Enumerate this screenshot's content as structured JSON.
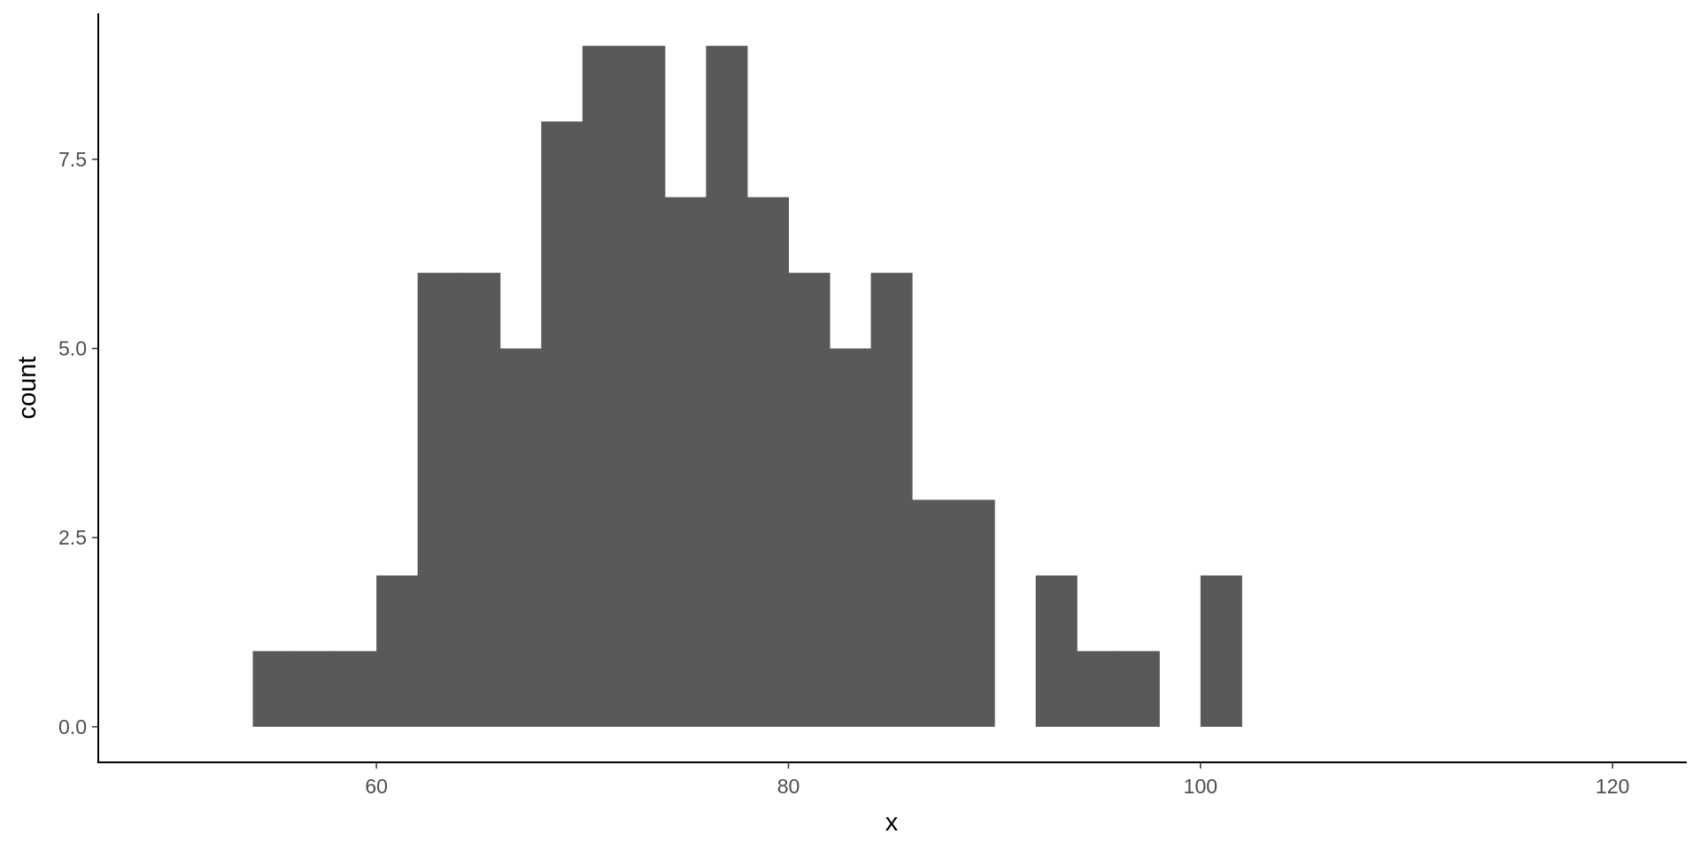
{
  "chart_data": {
    "type": "bar",
    "subtype": "histogram",
    "title": "",
    "xlabel": "x",
    "ylabel": "count",
    "bin_width": 2,
    "bins": [
      {
        "x0": 54,
        "x1": 56,
        "count": 1
      },
      {
        "x0": 56,
        "x1": 58,
        "count": 1
      },
      {
        "x0": 58,
        "x1": 60,
        "count": 1
      },
      {
        "x0": 60,
        "x1": 62,
        "count": 2
      },
      {
        "x0": 62,
        "x1": 64,
        "count": 6
      },
      {
        "x0": 64,
        "x1": 66,
        "count": 6
      },
      {
        "x0": 66,
        "x1": 68,
        "count": 5
      },
      {
        "x0": 68,
        "x1": 70,
        "count": 8
      },
      {
        "x0": 70,
        "x1": 72,
        "count": 9
      },
      {
        "x0": 72,
        "x1": 74,
        "count": 9
      },
      {
        "x0": 74,
        "x1": 76,
        "count": 7
      },
      {
        "x0": 76,
        "x1": 78,
        "count": 9
      },
      {
        "x0": 78,
        "x1": 80,
        "count": 7
      },
      {
        "x0": 80,
        "x1": 82,
        "count": 6
      },
      {
        "x0": 82,
        "x1": 84,
        "count": 5
      },
      {
        "x0": 84,
        "x1": 86,
        "count": 6
      },
      {
        "x0": 86,
        "x1": 88,
        "count": 3
      },
      {
        "x0": 88,
        "x1": 90,
        "count": 3
      },
      {
        "x0": 90,
        "x1": 92,
        "count": 0
      },
      {
        "x0": 92,
        "x1": 94,
        "count": 2
      },
      {
        "x0": 94,
        "x1": 96,
        "count": 1
      },
      {
        "x0": 96,
        "x1": 98,
        "count": 1
      },
      {
        "x0": 98,
        "x1": 100,
        "count": 0
      },
      {
        "x0": 100,
        "x1": 102,
        "count": 2
      }
    ],
    "xlim": [
      46.5,
      123.6
    ],
    "ylim": [
      -0.47,
      9.43
    ],
    "xticks": [
      "60",
      "80",
      "100",
      "120"
    ],
    "yticks": [
      "0.0",
      "2.5",
      "5.0",
      "7.5"
    ],
    "grid": false,
    "bar_color": "#595959",
    "axis_color": "#000000"
  }
}
